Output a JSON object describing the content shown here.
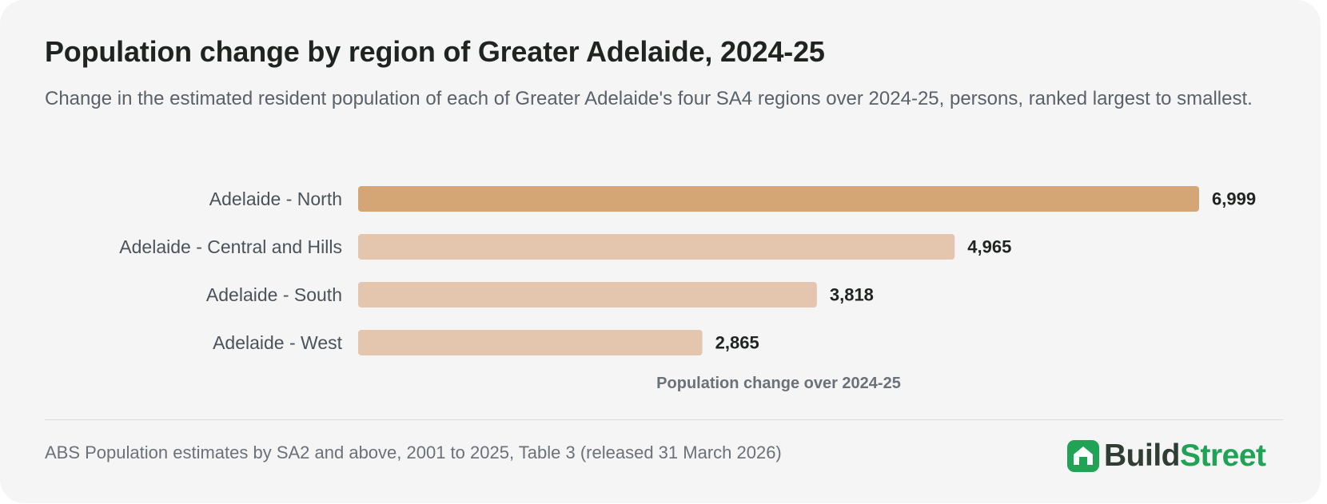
{
  "header": {
    "title": "Population change by region of Greater Adelaide, 2024-25",
    "subtitle": "Change in the estimated resident population of each of Greater Adelaide's four SA4 regions over 2024-25, persons, ranked largest to smallest."
  },
  "chart_data": {
    "type": "bar",
    "orientation": "horizontal",
    "categories": [
      "Adelaide - North",
      "Adelaide - Central and Hills",
      "Adelaide - South",
      "Adelaide - West"
    ],
    "values": [
      6999,
      4965,
      3818,
      2865
    ],
    "value_labels": [
      "6,999",
      "4,965",
      "3,818",
      "2,865"
    ],
    "xlabel": "Population change over 2024-25",
    "ylabel": "",
    "xlim": [
      0,
      6999
    ],
    "grid": false,
    "legend": "none",
    "highlight_index": 0,
    "colors": {
      "highlight": "#d4a676",
      "default": "#e3c6ad"
    }
  },
  "footer": {
    "source": "ABS Population estimates by SA2 and above, 2001 to 2025, Table 3 (released 31 March 2026)"
  },
  "logo": {
    "icon": "house-icon",
    "part1": "Build",
    "part2": "Street",
    "color_part1": "#2f3d35",
    "color_part2": "#21a355",
    "mark_color": "#21a355"
  }
}
